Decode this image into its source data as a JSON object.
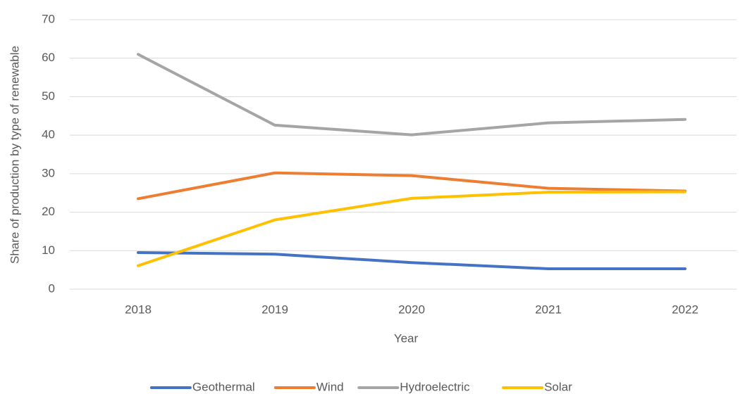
{
  "chart_data": {
    "type": "line",
    "x_label": "Year",
    "y_label": "Share of production by type of renewable",
    "categories": [
      "2018",
      "2019",
      "2020",
      "2021",
      "2022"
    ],
    "series": [
      {
        "name": "Geothermal",
        "color": "#4472c4",
        "values": [
          9.5,
          9.1,
          6.9,
          5.3,
          5.3
        ]
      },
      {
        "name": "Wind",
        "color": "#ed7d31",
        "values": [
          23.5,
          30.2,
          29.5,
          26.2,
          25.5
        ]
      },
      {
        "name": "Hydroelectric",
        "color": "#a5a5a5",
        "values": [
          61,
          42.6,
          40.1,
          43.2,
          44.1
        ]
      },
      {
        "name": "Solar",
        "color": "#ffc000",
        "values": [
          6.1,
          18,
          23.6,
          25.2,
          25.3
        ]
      }
    ],
    "ylim": [
      0,
      70
    ],
    "yticks": [
      0,
      10,
      20,
      30,
      40,
      50,
      60,
      70
    ],
    "grid": true,
    "legend": "bottom"
  }
}
